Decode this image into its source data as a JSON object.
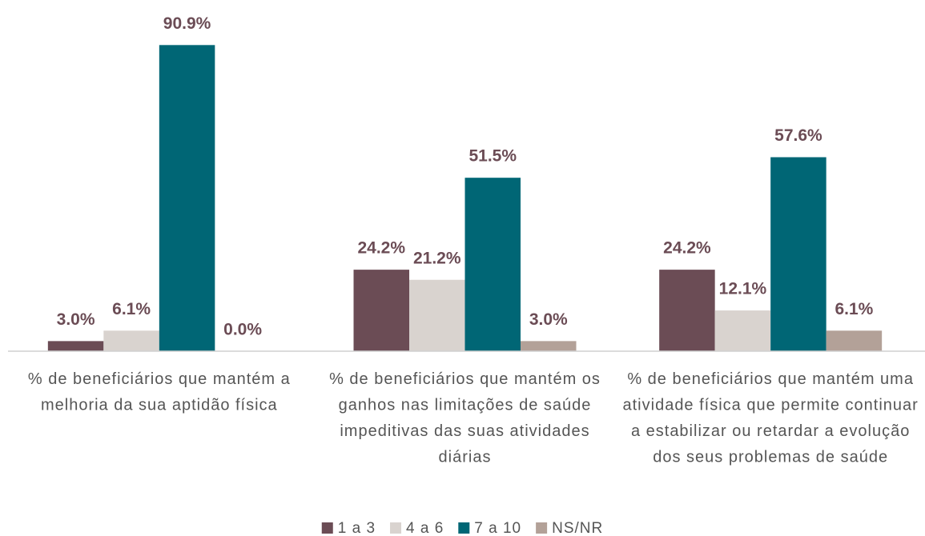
{
  "chart_data": {
    "type": "bar",
    "categories": [
      "% de beneficiários que mantém a melhoria da sua aptidão física",
      "% de beneficiários que mantém os ganhos nas limitações de saúde impeditivas das suas atividades diárias",
      "% de beneficiários que mantém uma atividade física que permite continuar a estabilizar ou retardar a evolução dos seus problemas de saúde"
    ],
    "series": [
      {
        "name": "1 a 3",
        "color": "#6b4c55",
        "values": [
          3.0,
          24.2,
          24.2
        ],
        "value_labels": [
          "3.0%",
          "24.2%",
          "24.2%"
        ]
      },
      {
        "name": "4 a 6",
        "color": "#d9d3cf",
        "values": [
          6.1,
          21.2,
          12.1
        ],
        "value_labels": [
          "6.1%",
          "21.2%",
          "12.1%"
        ]
      },
      {
        "name": "7 a 10",
        "color": "#006675",
        "values": [
          90.9,
          51.5,
          57.6
        ],
        "value_labels": [
          "90.9%",
          "51.5%",
          "57.6%"
        ]
      },
      {
        "name": "NS/NR",
        "color": "#b3a198",
        "values": [
          0.0,
          3.0,
          6.1
        ],
        "value_labels": [
          "0.0%",
          "3.0%",
          "6.1%"
        ]
      }
    ],
    "legend": "bottom"
  }
}
